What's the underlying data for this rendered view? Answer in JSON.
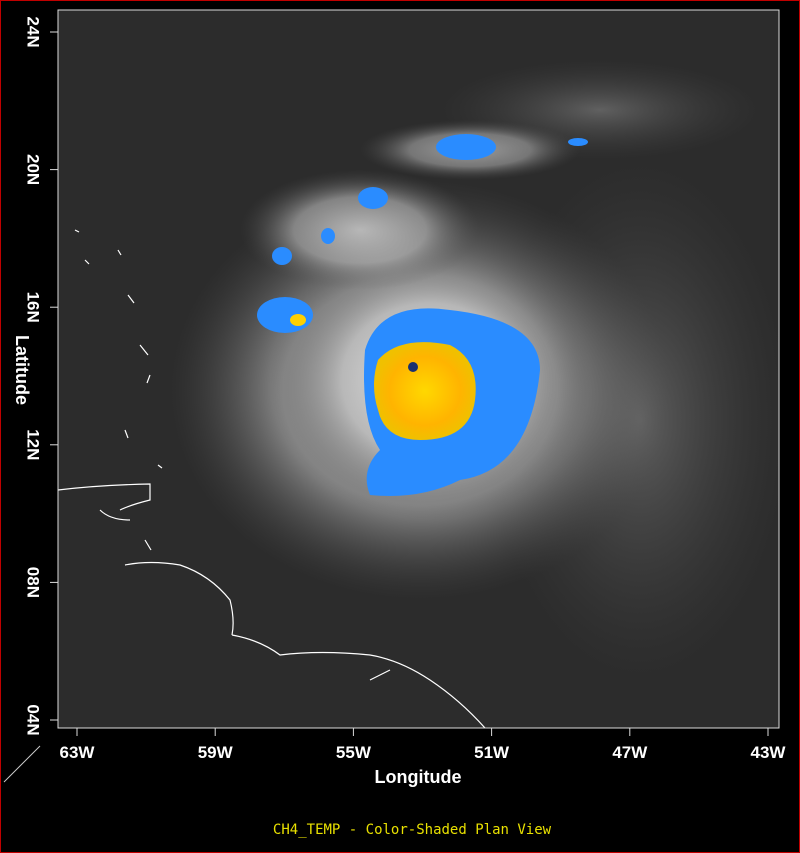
{
  "map": {
    "caption": "CH4_TEMP - Color-Shaded Plan View",
    "x_axis": {
      "label": "Longitude",
      "ticks": [
        "63W",
        "59W",
        "55W",
        "51W",
        "47W",
        "43W"
      ]
    },
    "y_axis": {
      "label": "Latitude",
      "ticks": [
        "24N",
        "20N",
        "16N",
        "12N",
        "08N",
        "04N"
      ]
    }
  }
}
